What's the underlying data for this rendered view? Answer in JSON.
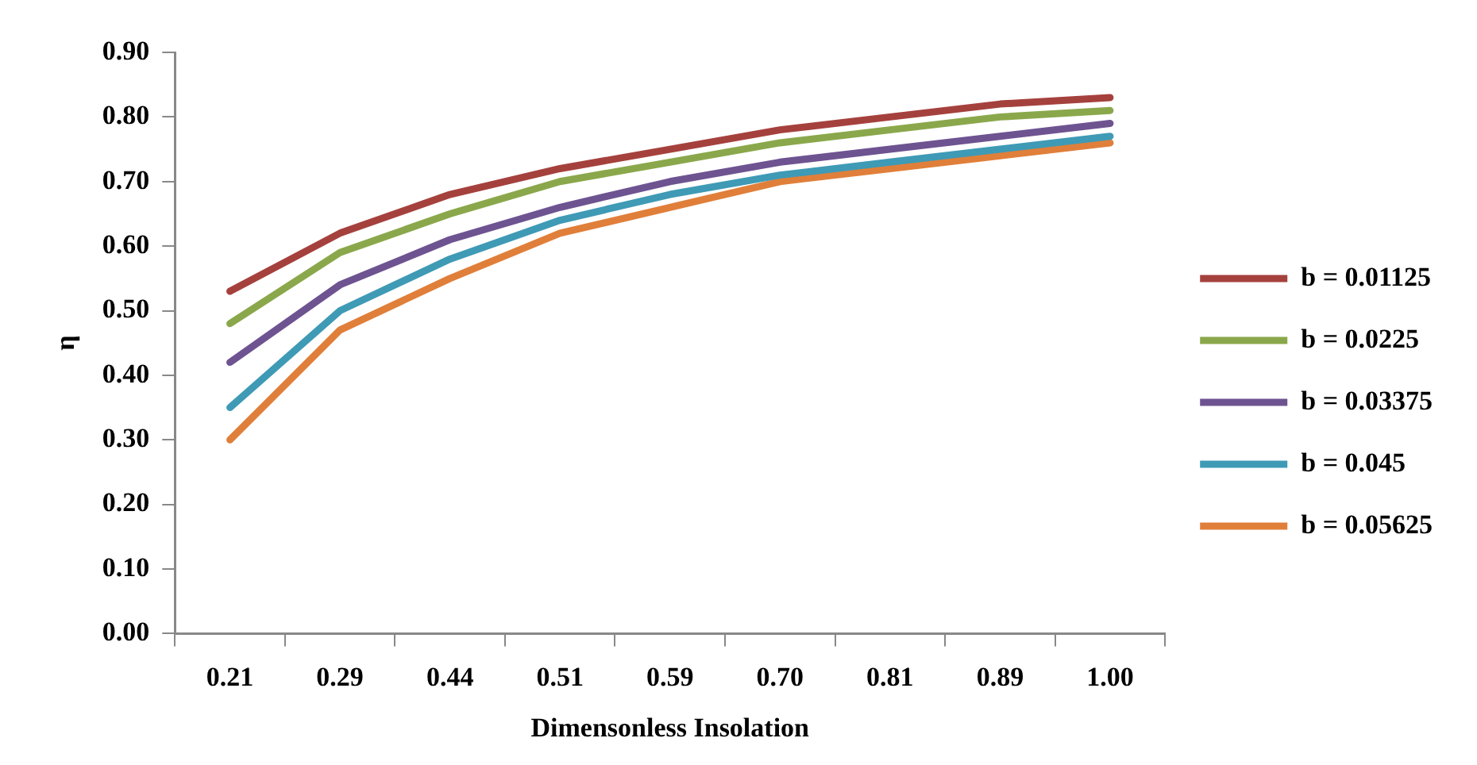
{
  "chart_data": {
    "type": "line",
    "xlabel": "Dimensonless Insolation",
    "ylabel": "η",
    "categories": [
      "0.21",
      "0.29",
      "0.44",
      "0.51",
      "0.59",
      "0.70",
      "0.81",
      "0.89",
      "1.00"
    ],
    "ylim": [
      0,
      0.9
    ],
    "yticks": [
      {
        "value": 0,
        "label": "0.00"
      },
      {
        "value": 0.1,
        "label": "0.10"
      },
      {
        "value": 0.2,
        "label": "0.20"
      },
      {
        "value": 0.3,
        "label": "0.30"
      },
      {
        "value": 0.4,
        "label": "0.40"
      },
      {
        "value": 0.5,
        "label": "0.50"
      },
      {
        "value": 0.6,
        "label": "0.60"
      },
      {
        "value": 0.7,
        "label": "0.70"
      },
      {
        "value": 0.8,
        "label": "0.80"
      },
      {
        "value": 0.9,
        "label": "0.90"
      }
    ],
    "grid": false,
    "legend": "right",
    "marker": "none",
    "line_style": "solid",
    "series": [
      {
        "name": "b = 0.01125",
        "color": "#a5413d",
        "values": [
          0.53,
          0.62,
          0.68,
          0.72,
          0.75,
          0.78,
          0.8,
          0.82,
          0.83
        ]
      },
      {
        "name": "b = 0.0225",
        "color": "#8aa84b",
        "values": [
          0.48,
          0.59,
          0.65,
          0.7,
          0.73,
          0.76,
          0.78,
          0.8,
          0.81
        ]
      },
      {
        "name": "b = 0.03375",
        "color": "#6e5391",
        "values": [
          0.42,
          0.54,
          0.61,
          0.66,
          0.7,
          0.73,
          0.75,
          0.77,
          0.79
        ]
      },
      {
        "name": "b = 0.045",
        "color": "#3f9ab5",
        "values": [
          0.35,
          0.5,
          0.58,
          0.64,
          0.68,
          0.71,
          0.73,
          0.75,
          0.77
        ]
      },
      {
        "name": "b = 0.05625",
        "color": "#e07f3a",
        "values": [
          0.3,
          0.47,
          0.55,
          0.62,
          0.66,
          0.7,
          0.72,
          0.74,
          0.76
        ]
      }
    ]
  }
}
